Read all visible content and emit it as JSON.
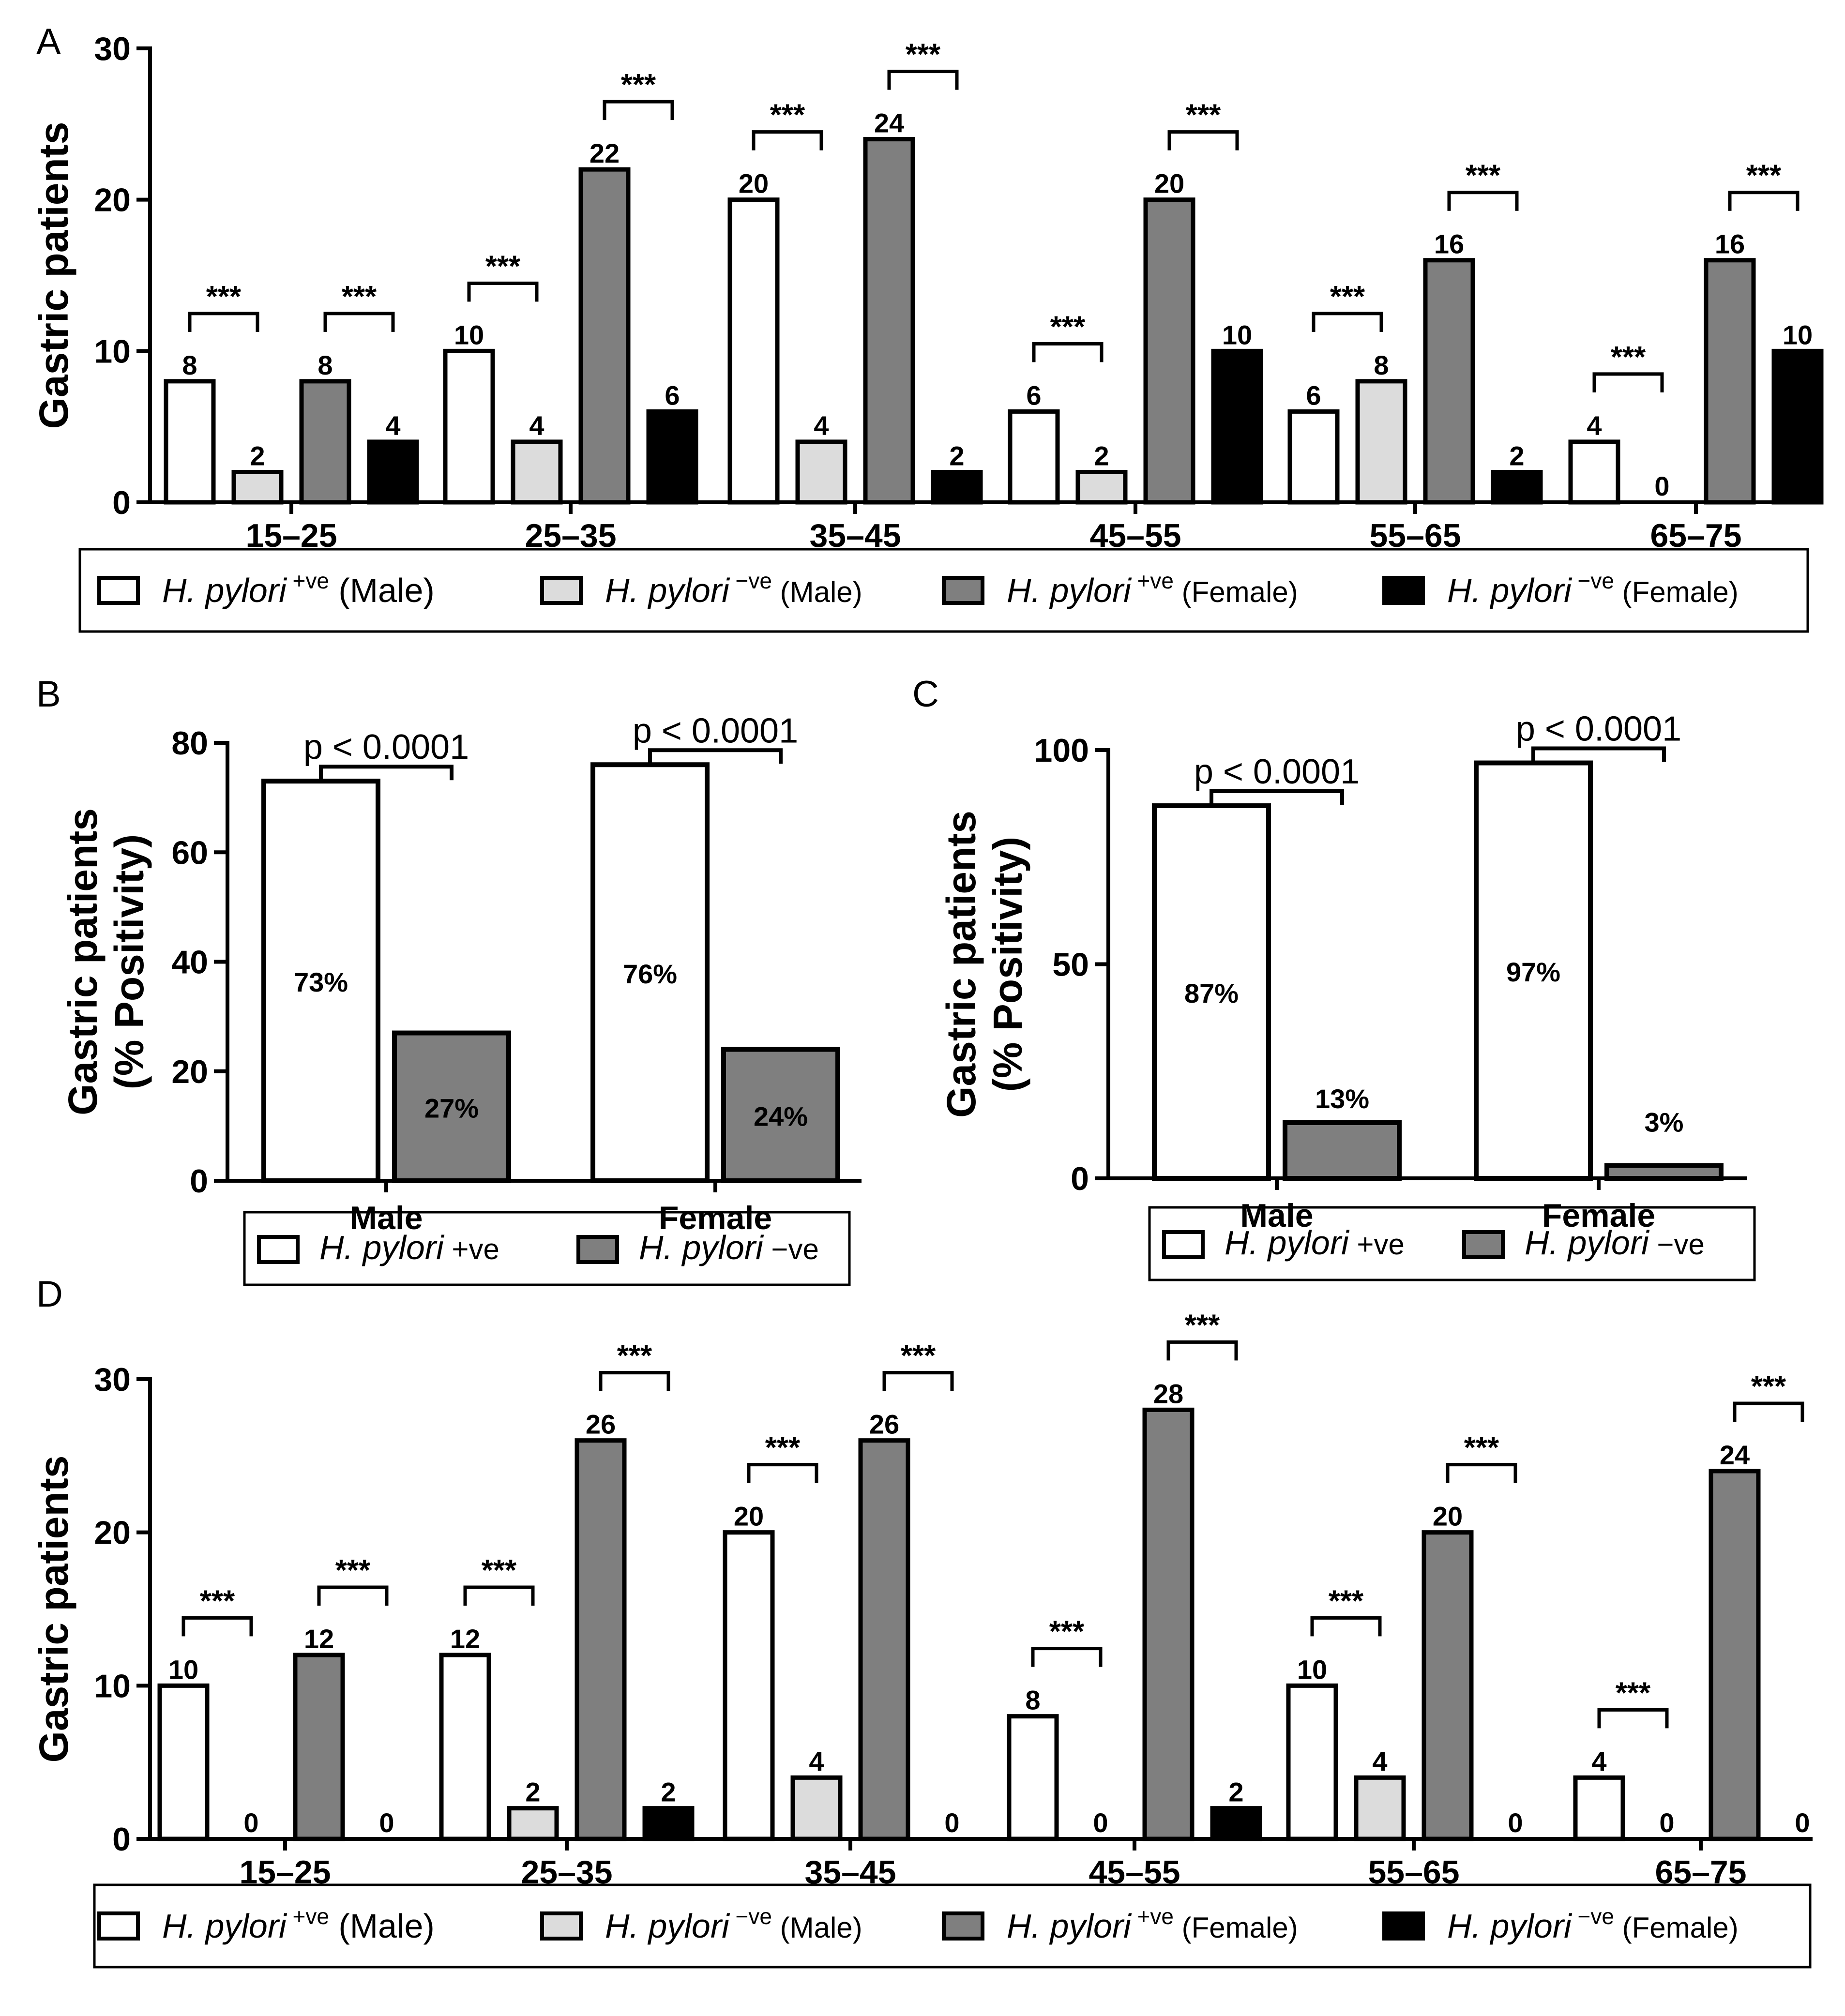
{
  "legend_labels": {
    "hp_word": "H. pylori",
    "pos_sup": "+ve",
    "neg_sup": "−ve",
    "male": "(Male)",
    "female": "(Female)",
    "pos": "+ve",
    "neg": "−ve"
  },
  "colors": {
    "pos_male": "#ffffff",
    "neg_male": "#dcdcdc",
    "pos_female": "#7f7f7f",
    "neg_female": "#000000",
    "pos": "#ffffff",
    "neg": "#7f7f7f",
    "stroke": "#000000"
  },
  "chart_data": [
    {
      "panel": "A",
      "type": "bar",
      "ylabel": "Gastric patients",
      "ylim": [
        0,
        30
      ],
      "yticks": [
        0,
        10,
        20,
        30
      ],
      "categories": [
        "15–25",
        "25–35",
        "35–45",
        "45–55",
        "55–65",
        "65–75"
      ],
      "series": [
        {
          "name": "H. pylori +ve (Male)",
          "values": [
            8,
            10,
            20,
            6,
            6,
            4
          ]
        },
        {
          "name": "H. pylori −ve (Male)",
          "values": [
            2,
            4,
            4,
            2,
            8,
            0
          ]
        },
        {
          "name": "H. pylori +ve (Female)",
          "values": [
            8,
            22,
            24,
            20,
            16,
            16
          ]
        },
        {
          "name": "H. pylori −ve (Female)",
          "values": [
            4,
            6,
            2,
            10,
            2,
            10
          ]
        }
      ],
      "significance": "***",
      "legend_position": "bottom"
    },
    {
      "panel": "B",
      "type": "bar",
      "ylabel": "Gastric patients\n(% Positivity)",
      "ylim": [
        0,
        80
      ],
      "yticks": [
        0,
        20,
        40,
        60,
        80
      ],
      "categories": [
        "Male",
        "Female"
      ],
      "series": [
        {
          "name": "H. pylori +ve",
          "values": [
            73,
            76
          ],
          "labels": [
            "73%",
            "76%"
          ]
        },
        {
          "name": "H. pylori −ve",
          "values": [
            27,
            24
          ],
          "labels": [
            "27%",
            "24%"
          ]
        }
      ],
      "significance": "p < 0.0001",
      "legend_position": "bottom"
    },
    {
      "panel": "C",
      "type": "bar",
      "ylabel": "Gastric patients\n(% Positivity)",
      "ylim": [
        0,
        100
      ],
      "yticks": [
        0,
        50,
        100
      ],
      "categories": [
        "Male",
        "Female"
      ],
      "series": [
        {
          "name": "H. pylori +ve",
          "values": [
            87,
            97
          ],
          "labels": [
            "87%",
            "97%"
          ]
        },
        {
          "name": "H. pylori −ve",
          "values": [
            13,
            3
          ],
          "labels": [
            "13%",
            "3%"
          ]
        }
      ],
      "significance": "p < 0.0001",
      "legend_position": "bottom"
    },
    {
      "panel": "D",
      "type": "bar",
      "ylabel": "Gastric patients",
      "ylim": [
        0,
        30
      ],
      "yticks": [
        0,
        10,
        20,
        30
      ],
      "categories": [
        "15–25",
        "25–35",
        "35–45",
        "45–55",
        "55–65",
        "65–75"
      ],
      "series": [
        {
          "name": "H. pylori +ve (Male)",
          "values": [
            10,
            12,
            20,
            8,
            10,
            4
          ]
        },
        {
          "name": "H. pylori −ve (Male)",
          "values": [
            0,
            2,
            4,
            0,
            4,
            0
          ]
        },
        {
          "name": "H. pylori +ve (Female)",
          "values": [
            12,
            26,
            26,
            28,
            20,
            24
          ]
        },
        {
          "name": "H. pylori −ve (Female)",
          "values": [
            0,
            2,
            0,
            2,
            0,
            0
          ]
        }
      ],
      "significance": "***",
      "legend_position": "bottom"
    }
  ]
}
